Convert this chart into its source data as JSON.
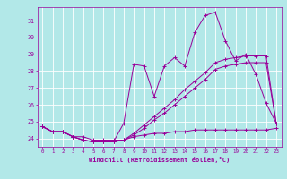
{
  "xlabel": "Windchill (Refroidissement éolien,°C)",
  "bg_color": "#b2e8e8",
  "grid_color": "#ffffff",
  "line_color": "#990099",
  "xlim": [
    -0.5,
    23.5
  ],
  "ylim": [
    23.5,
    31.8
  ],
  "yticks": [
    24,
    25,
    26,
    27,
    28,
    29,
    30,
    31
  ],
  "xticks": [
    0,
    1,
    2,
    3,
    4,
    5,
    6,
    7,
    8,
    9,
    10,
    11,
    12,
    13,
    14,
    15,
    16,
    17,
    18,
    19,
    20,
    21,
    22,
    23
  ],
  "hours": [
    0,
    1,
    2,
    3,
    4,
    5,
    6,
    7,
    8,
    9,
    10,
    11,
    12,
    13,
    14,
    15,
    16,
    17,
    18,
    19,
    20,
    21,
    22,
    23
  ],
  "line1": [
    24.7,
    24.4,
    24.4,
    24.1,
    24.1,
    23.9,
    23.9,
    23.9,
    23.9,
    24.1,
    24.2,
    24.3,
    24.3,
    24.4,
    24.4,
    24.5,
    24.5,
    24.5,
    24.5,
    24.5,
    24.5,
    24.5,
    24.5,
    24.6
  ],
  "line2": [
    24.7,
    24.4,
    24.4,
    24.1,
    23.9,
    23.8,
    23.8,
    23.8,
    24.9,
    28.4,
    28.3,
    26.5,
    28.3,
    28.8,
    28.3,
    30.3,
    31.3,
    31.5,
    29.8,
    28.6,
    29.0,
    27.8,
    26.1,
    24.9
  ],
  "line3": [
    24.7,
    24.4,
    24.4,
    24.1,
    23.9,
    23.8,
    23.8,
    23.8,
    23.9,
    24.3,
    24.8,
    25.3,
    25.8,
    26.3,
    26.9,
    27.4,
    27.9,
    28.5,
    28.7,
    28.8,
    28.9,
    28.9,
    28.9,
    24.9
  ],
  "line4": [
    24.7,
    24.4,
    24.4,
    24.1,
    23.9,
    23.8,
    23.8,
    23.8,
    23.9,
    24.2,
    24.6,
    25.1,
    25.5,
    26.0,
    26.5,
    27.0,
    27.5,
    28.1,
    28.3,
    28.4,
    28.5,
    28.5,
    28.5,
    24.9
  ]
}
